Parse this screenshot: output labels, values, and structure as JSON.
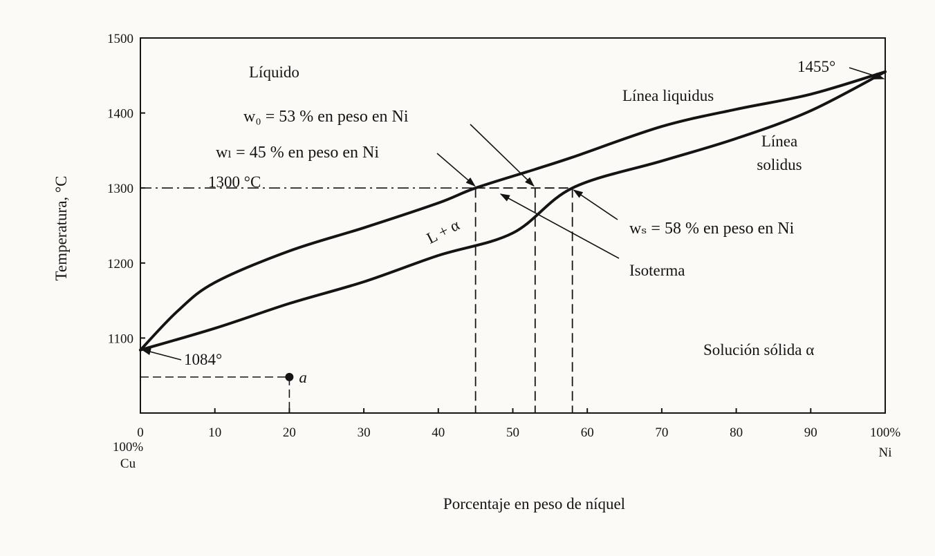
{
  "chart_data": {
    "type": "line",
    "title": "",
    "xlabel": "Porcentaje en peso de níquel",
    "ylabel": "Temperatura, °C",
    "xlim": [
      0,
      100
    ],
    "ylim": [
      1000,
      1500
    ],
    "grid": false,
    "x_ticks": [
      0,
      10,
      20,
      30,
      40,
      50,
      60,
      70,
      80,
      90,
      100
    ],
    "y_ticks": [
      1100,
      1200,
      1300,
      1400,
      1500
    ],
    "x_tick_labels": [
      "0",
      "10",
      "20",
      "30",
      "40",
      "50",
      "60",
      "70",
      "80",
      "90",
      "100%"
    ],
    "y_tick_labels": [
      "1100",
      "1200",
      "1300",
      "1400",
      "1500"
    ],
    "x_end_labels": {
      "left_top": "100%",
      "left_bottom": "Cu",
      "right_bottom": "Ni"
    },
    "series": [
      {
        "name": "Línea liquidus",
        "x": [
          0,
          5,
          10,
          20,
          30,
          40,
          45,
          53,
          58,
          70,
          80,
          90,
          100
        ],
        "y": [
          1084,
          1136,
          1174,
          1216,
          1247,
          1280,
          1300,
          1325,
          1341,
          1382,
          1405,
          1425,
          1455
        ]
      },
      {
        "name": "Línea solidus",
        "x": [
          0,
          10,
          20,
          30,
          40,
          50,
          58,
          70,
          80,
          90,
          100
        ],
        "y": [
          1084,
          1113,
          1146,
          1175,
          1210,
          1240,
          1300,
          1336,
          1366,
          1403,
          1455
        ]
      }
    ],
    "isotherm": {
      "y": 1300,
      "label": "1300 °C"
    },
    "tie_line_compositions": [
      45,
      53,
      58
    ],
    "point_a": {
      "x": 20,
      "y": 1048,
      "label": "a"
    },
    "annotations": {
      "region_liquid": "Líquido",
      "region_two_phase": "L + α",
      "region_solid": "Solución sólida α",
      "liquidus_label": "Línea liquidus",
      "solidus_label_1": "Línea",
      "solidus_label_2": "solidus",
      "w0": "w₀ = 53 % en peso en Ni",
      "wl": "wₗ = 45 % en peso en Ni",
      "ws": "wₛ = 58 % en peso en Ni",
      "isoterma": "Isoterma",
      "melting_cu": "1084°",
      "melting_ni": "1455°"
    }
  },
  "colors": {
    "ink": "#141414",
    "background": "#fbfaf7"
  }
}
